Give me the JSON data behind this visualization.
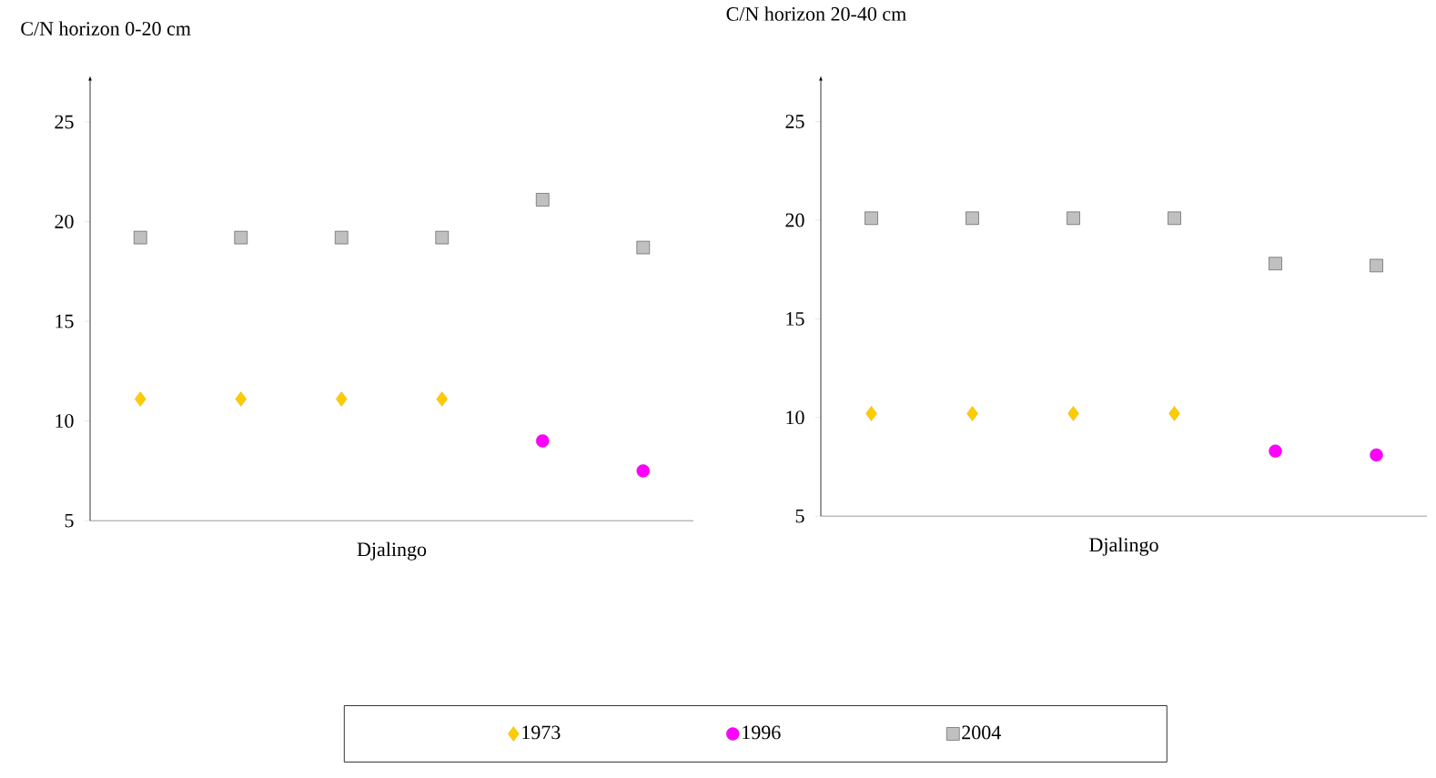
{
  "chart_data": [
    {
      "type": "scatter",
      "title": "C/N horizon 0-20 cm",
      "xlabel": "Djalingo",
      "categories": [
        null,
        null,
        null,
        null,
        null,
        null
      ],
      "ylim": [
        5,
        27
      ],
      "yticks": [
        5,
        10,
        15,
        20,
        25
      ],
      "grid": false,
      "legend": "bottom",
      "series": [
        {
          "name": "1973",
          "color": "#ffcc00",
          "marker": "diamond",
          "values": [
            11.1,
            11.1,
            11.1,
            11.1,
            null,
            null
          ]
        },
        {
          "name": "1996",
          "color": "#ff00ff",
          "marker": "circle",
          "values": [
            null,
            null,
            null,
            null,
            9.0,
            7.5
          ]
        },
        {
          "name": "2004",
          "color": "#c0c0c0",
          "marker": "square",
          "values": [
            19.2,
            19.2,
            19.2,
            19.2,
            21.1,
            18.7
          ]
        }
      ]
    },
    {
      "type": "scatter",
      "title": "C/N horizon 20-40 cm",
      "xlabel": "Djalingo",
      "categories": [
        null,
        null,
        null,
        null,
        null,
        null
      ],
      "ylim": [
        5,
        27
      ],
      "yticks": [
        5,
        10,
        15,
        20,
        25
      ],
      "grid": false,
      "series": [
        {
          "color": "#ffcc00",
          "marker": "diamond",
          "values": [
            10.2,
            10.2,
            10.2,
            10.2,
            null,
            null
          ]
        },
        {
          "color": "#ff00ff",
          "marker": "circle",
          "values": [
            null,
            null,
            null,
            null,
            8.3,
            8.1
          ]
        },
        {
          "color": "#c0c0c0",
          "marker": "square",
          "values": [
            20.1,
            20.1,
            20.1,
            20.1,
            17.8,
            17.7
          ]
        }
      ]
    }
  ]
}
